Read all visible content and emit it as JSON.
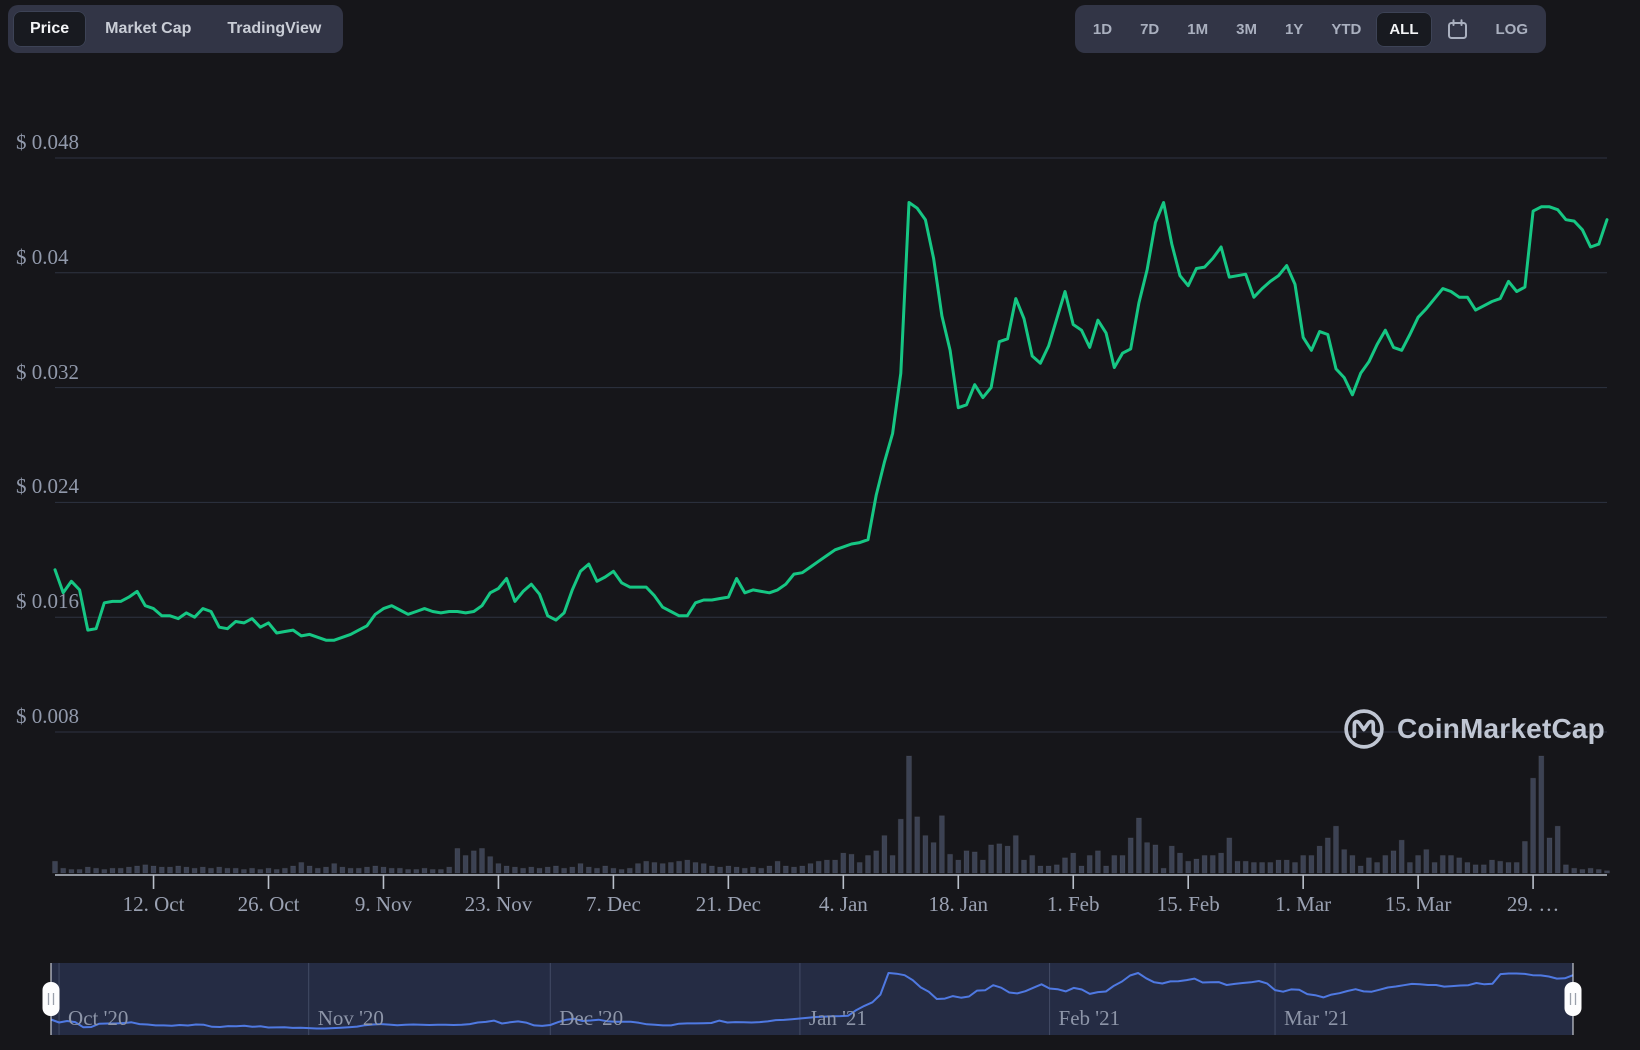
{
  "toolbar_left": {
    "tabs": [
      {
        "label": "Price",
        "selected": true
      },
      {
        "label": "Market Cap",
        "selected": false
      },
      {
        "label": "TradingView",
        "selected": false
      }
    ]
  },
  "toolbar_right": {
    "ranges": [
      "1D",
      "7D",
      "1M",
      "3M",
      "1Y",
      "YTD",
      "ALL"
    ],
    "selected_range": "ALL",
    "calendar_icon": "calendar-icon",
    "log_label": "LOG"
  },
  "watermark": {
    "text": "CoinMarketCap",
    "logo_icon": "coinmarketcap-m-in-circle",
    "color": "#cdd4e2"
  },
  "chart_data": {
    "type": "line",
    "description": "Cryptocurrency price in USD with 24h volume bars and a range navigator (CoinMarketCap dark theme)",
    "date_start": "2020-09-30",
    "date_end": "2021-04-07",
    "grid": "horizontal",
    "ylim": [
      0.008,
      0.048
    ],
    "colors": {
      "price_line": "#16c784",
      "volume_bar": "#3c4253",
      "navigator_line": "#4f79e2",
      "grid": "#2e3341",
      "axis": "#b9bfc9",
      "label": "#9aa1b2"
    },
    "y_ticks": [
      {
        "label": "$ 0.048",
        "value": 0.048
      },
      {
        "label": "$ 0.04",
        "value": 0.04
      },
      {
        "label": "$ 0.032",
        "value": 0.032
      },
      {
        "label": "$ 0.024",
        "value": 0.024
      },
      {
        "label": "$ 0.016",
        "value": 0.016
      },
      {
        "label": "$ 0.008",
        "value": 0.008
      }
    ],
    "x_ticks": [
      {
        "label": "12. Oct",
        "day": 12
      },
      {
        "label": "26. Oct",
        "day": 26
      },
      {
        "label": "9. Nov",
        "day": 40
      },
      {
        "label": "23. Nov",
        "day": 54
      },
      {
        "label": "7. Dec",
        "day": 68
      },
      {
        "label": "21. Dec",
        "day": 82
      },
      {
        "label": "4. Jan",
        "day": 96
      },
      {
        "label": "18. Jan",
        "day": 110
      },
      {
        "label": "1. Feb",
        "day": 124
      },
      {
        "label": "15. Feb",
        "day": 138
      },
      {
        "label": "1. Mar",
        "day": 152
      },
      {
        "label": "15. Mar",
        "day": 166
      },
      {
        "label": "29. …",
        "day": 180
      }
    ],
    "series": [
      {
        "name": "Price (USD)",
        "type": "line",
        "color": "#16c784",
        "x_unit": "days from 2020-09-30, one value per day",
        "values": [
          0.0193,
          0.0177,
          0.0185,
          0.0179,
          0.0151,
          0.0152,
          0.017,
          0.0171,
          0.0171,
          0.0174,
          0.0178,
          0.0168,
          0.0166,
          0.0161,
          0.0161,
          0.0159,
          0.0163,
          0.016,
          0.0166,
          0.0164,
          0.0153,
          0.0152,
          0.0157,
          0.0156,
          0.0159,
          0.0153,
          0.0156,
          0.0149,
          0.015,
          0.0151,
          0.0147,
          0.0148,
          0.0146,
          0.0144,
          0.0144,
          0.0146,
          0.0148,
          0.0151,
          0.0154,
          0.0162,
          0.0166,
          0.0168,
          0.0165,
          0.0162,
          0.0164,
          0.0166,
          0.0164,
          0.0163,
          0.0164,
          0.0164,
          0.0163,
          0.0164,
          0.0168,
          0.0177,
          0.018,
          0.0187,
          0.0171,
          0.0178,
          0.0183,
          0.0176,
          0.0161,
          0.0158,
          0.0163,
          0.0179,
          0.0192,
          0.0197,
          0.0185,
          0.0188,
          0.0192,
          0.0184,
          0.0181,
          0.0181,
          0.0181,
          0.0175,
          0.0167,
          0.0164,
          0.0161,
          0.0161,
          0.017,
          0.0172,
          0.0172,
          0.0173,
          0.0174,
          0.0187,
          0.0177,
          0.0179,
          0.0178,
          0.0177,
          0.0179,
          0.0183,
          0.019,
          0.0191,
          0.0195,
          0.0199,
          0.0203,
          0.0207,
          0.0209,
          0.0211,
          0.0212,
          0.0214,
          0.0245,
          0.0268,
          0.0288,
          0.033,
          0.0449,
          0.0445,
          0.0437,
          0.041,
          0.037,
          0.0346,
          0.0306,
          0.0308,
          0.0322,
          0.0313,
          0.032,
          0.0352,
          0.0354,
          0.0382,
          0.0368,
          0.0342,
          0.0337,
          0.0349,
          0.0368,
          0.0387,
          0.0364,
          0.036,
          0.0348,
          0.0367,
          0.0358,
          0.0334,
          0.0344,
          0.0347,
          0.0379,
          0.0402,
          0.0435,
          0.0449,
          0.042,
          0.0398,
          0.0391,
          0.0403,
          0.0404,
          0.041,
          0.0418,
          0.0397,
          0.0398,
          0.0399,
          0.0383,
          0.0389,
          0.0394,
          0.0398,
          0.0405,
          0.0392,
          0.0355,
          0.0346,
          0.0359,
          0.0357,
          0.0333,
          0.0327,
          0.0315,
          0.033,
          0.0338,
          0.035,
          0.036,
          0.0348,
          0.0346,
          0.0357,
          0.0369,
          0.0375,
          0.0382,
          0.0389,
          0.0387,
          0.0383,
          0.0383,
          0.0374,
          0.0377,
          0.038,
          0.0382,
          0.0394,
          0.0387,
          0.039,
          0.0443,
          0.0446,
          0.0446,
          0.0444,
          0.0437,
          0.0436,
          0.043,
          0.0418,
          0.042,
          0.0437
        ]
      },
      {
        "name": "Volume 24h",
        "type": "bar",
        "color": "#3c4253",
        "unit": "relative to maximum bar (no numeric axis shown)",
        "values": [
          0.1,
          0.04,
          0.03,
          0.03,
          0.05,
          0.04,
          0.03,
          0.04,
          0.04,
          0.05,
          0.06,
          0.07,
          0.06,
          0.05,
          0.05,
          0.06,
          0.05,
          0.04,
          0.05,
          0.04,
          0.05,
          0.04,
          0.04,
          0.03,
          0.04,
          0.03,
          0.04,
          0.03,
          0.04,
          0.06,
          0.09,
          0.06,
          0.04,
          0.05,
          0.08,
          0.05,
          0.04,
          0.04,
          0.05,
          0.06,
          0.05,
          0.04,
          0.04,
          0.03,
          0.03,
          0.04,
          0.03,
          0.03,
          0.05,
          0.21,
          0.15,
          0.19,
          0.21,
          0.14,
          0.08,
          0.06,
          0.05,
          0.04,
          0.05,
          0.04,
          0.05,
          0.06,
          0.04,
          0.05,
          0.08,
          0.05,
          0.04,
          0.06,
          0.04,
          0.03,
          0.04,
          0.08,
          0.1,
          0.09,
          0.08,
          0.09,
          0.1,
          0.11,
          0.09,
          0.08,
          0.06,
          0.05,
          0.06,
          0.05,
          0.04,
          0.05,
          0.04,
          0.06,
          0.1,
          0.06,
          0.05,
          0.06,
          0.08,
          0.1,
          0.11,
          0.11,
          0.17,
          0.16,
          0.09,
          0.15,
          0.19,
          0.32,
          0.15,
          0.46,
          1.0,
          0.48,
          0.32,
          0.26,
          0.49,
          0.16,
          0.11,
          0.19,
          0.18,
          0.11,
          0.24,
          0.25,
          0.23,
          0.32,
          0.11,
          0.15,
          0.06,
          0.06,
          0.07,
          0.13,
          0.17,
          0.06,
          0.15,
          0.19,
          0.06,
          0.15,
          0.15,
          0.3,
          0.47,
          0.26,
          0.24,
          0.04,
          0.23,
          0.17,
          0.1,
          0.12,
          0.15,
          0.15,
          0.17,
          0.3,
          0.1,
          0.1,
          0.09,
          0.09,
          0.09,
          0.11,
          0.11,
          0.09,
          0.15,
          0.15,
          0.23,
          0.3,
          0.4,
          0.2,
          0.15,
          0.06,
          0.13,
          0.09,
          0.15,
          0.19,
          0.28,
          0.09,
          0.15,
          0.2,
          0.09,
          0.15,
          0.15,
          0.13,
          0.09,
          0.07,
          0.07,
          0.11,
          0.1,
          0.09,
          0.09,
          0.27,
          0.81,
          1.0,
          0.3,
          0.4,
          0.07,
          0.04,
          0.03,
          0.04,
          0.03,
          0.02
        ]
      }
    ],
    "navigator": {
      "line_color": "#4f79e2",
      "months": [
        {
          "label": "Oct '20",
          "day": 1
        },
        {
          "label": "Nov '20",
          "day": 32
        },
        {
          "label": "Dec '20",
          "day": 62
        },
        {
          "label": "Jan '21",
          "day": 93
        },
        {
          "label": "Feb '21",
          "day": 124
        },
        {
          "label": "Mar '21",
          "day": 152
        }
      ]
    }
  }
}
